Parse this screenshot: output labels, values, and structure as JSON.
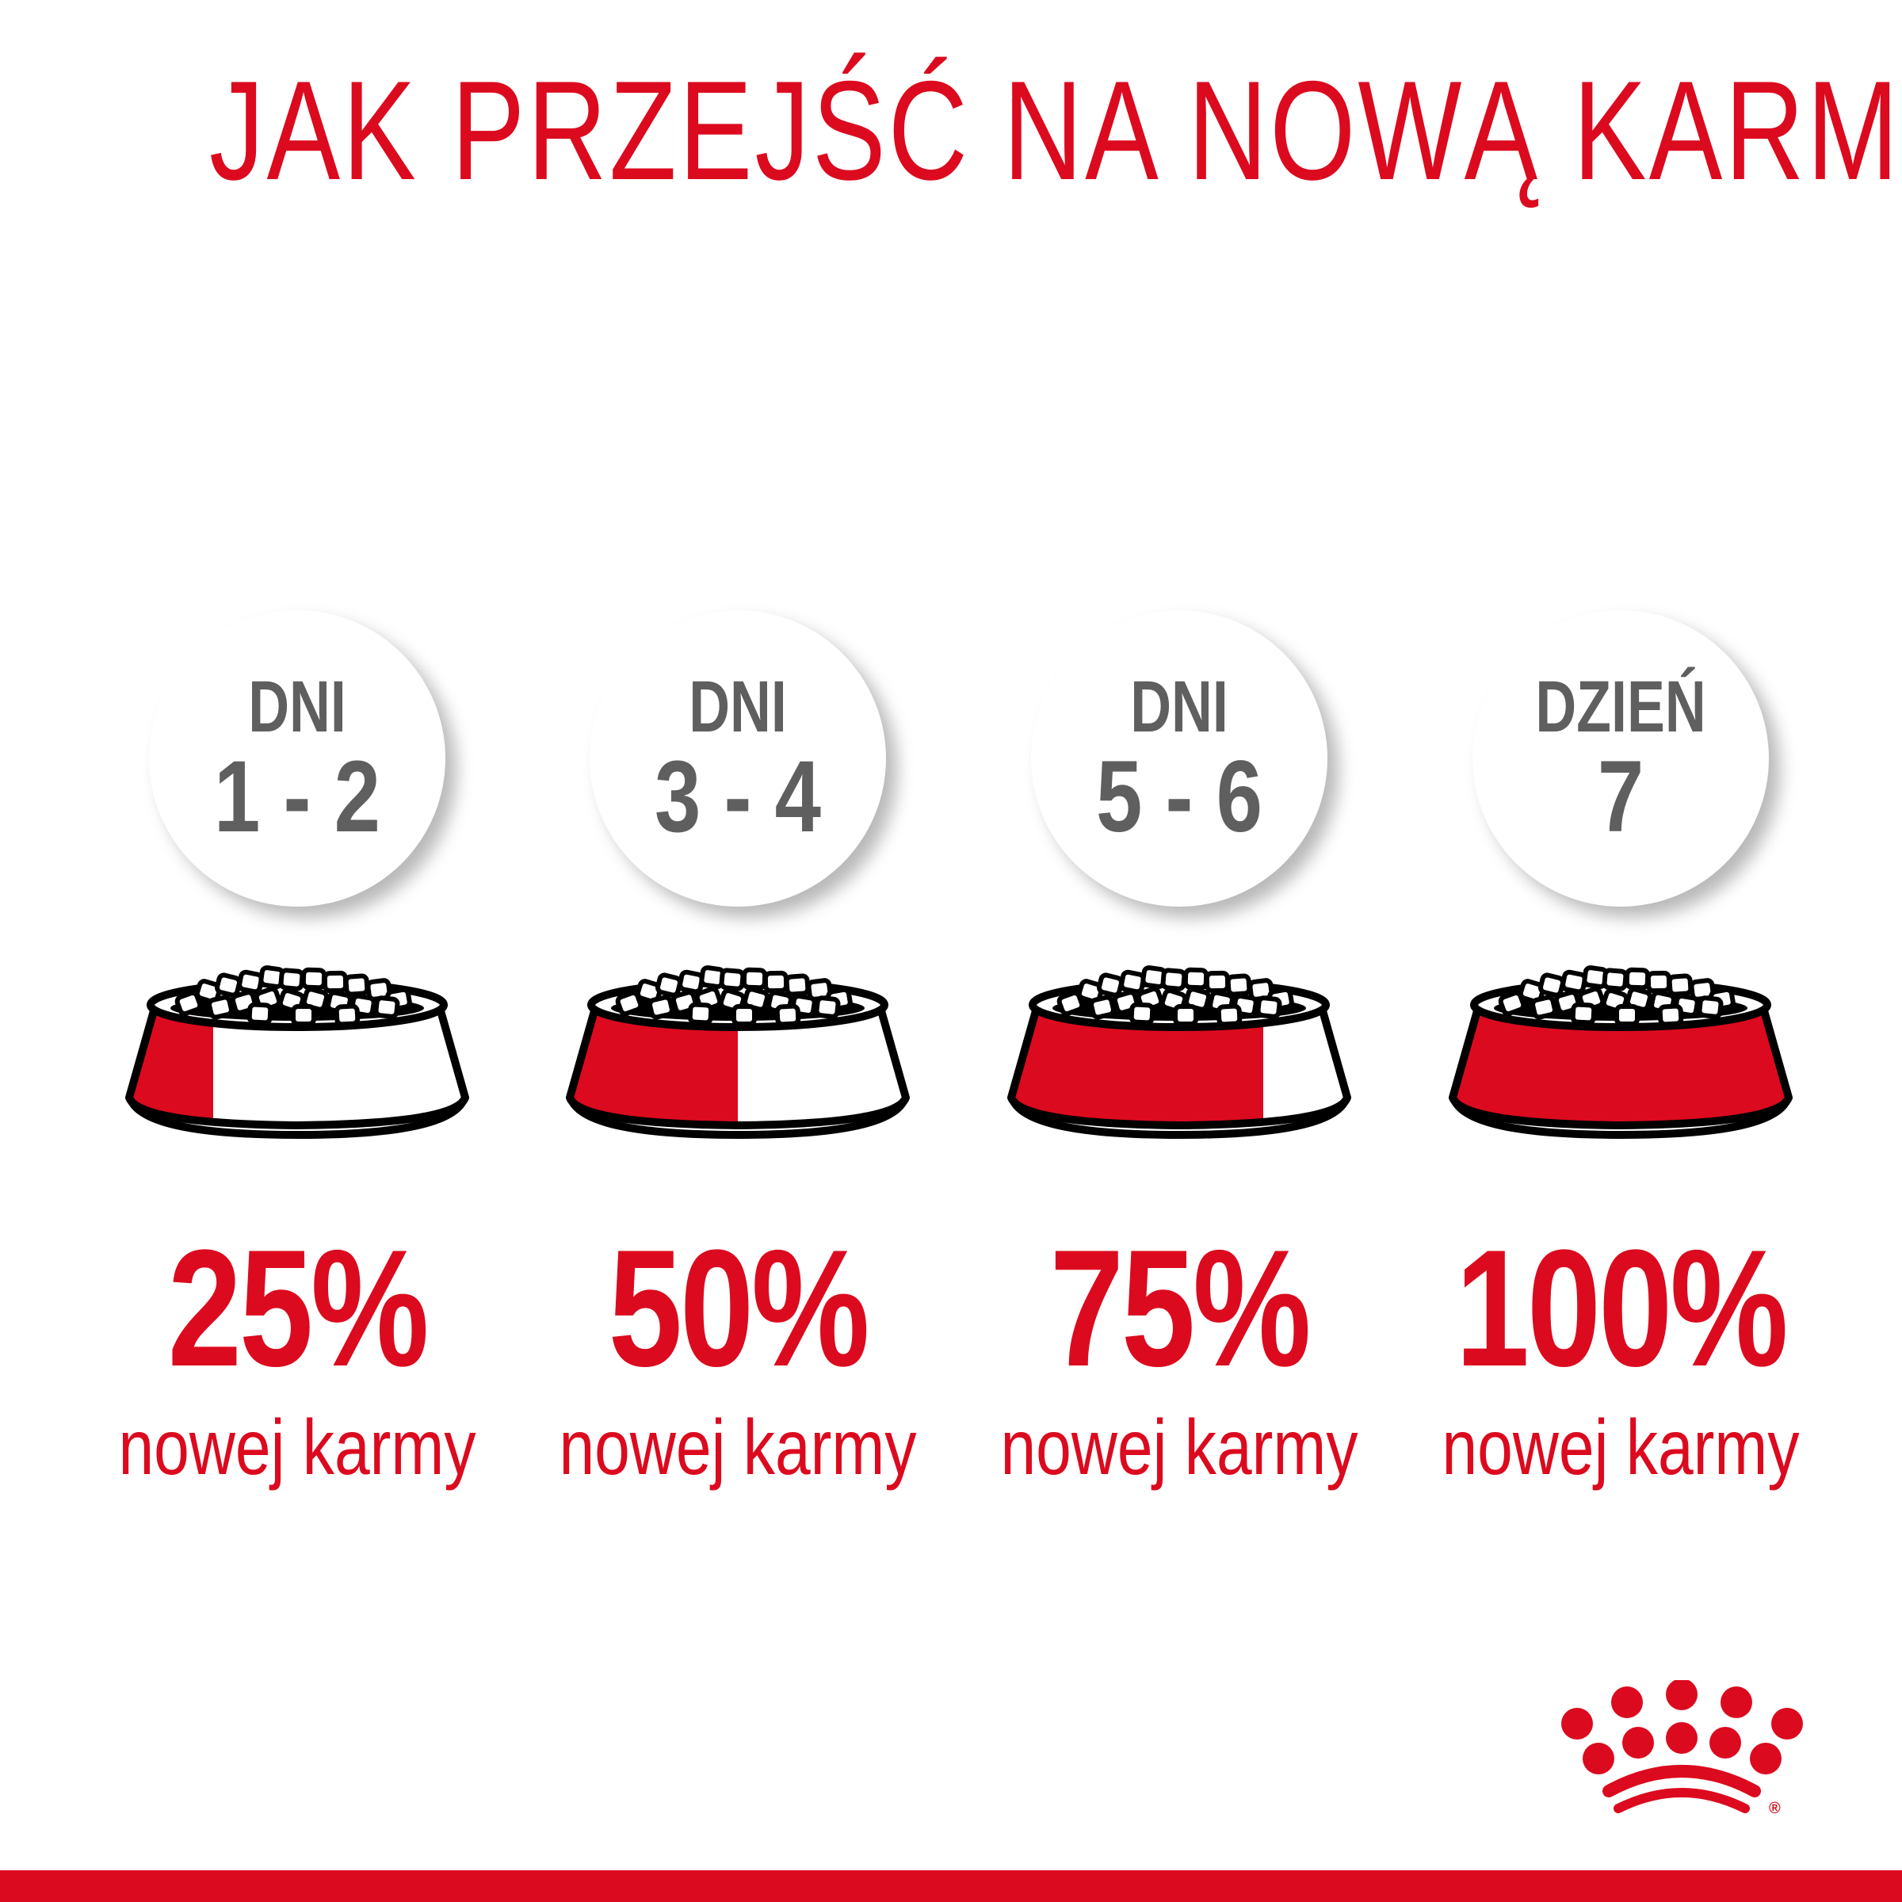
{
  "title": "JAK PRZEJŚĆ NA NOWĄ KARMĘ",
  "colors": {
    "brand_red": "#dc0a1e",
    "gray": "#5f5f5f"
  },
  "steps": [
    {
      "label": "DNI",
      "days": "1 - 2",
      "percent": "25%",
      "new_food_fraction": 0.25,
      "caption": "nowej karmy"
    },
    {
      "label": "DNI",
      "days": "3 - 4",
      "percent": "50%",
      "new_food_fraction": 0.5,
      "caption": "nowej karmy"
    },
    {
      "label": "DNI",
      "days": "5 - 6",
      "percent": "75%",
      "new_food_fraction": 0.75,
      "caption": "nowej karmy"
    },
    {
      "label": "DZIEŃ",
      "days": "7",
      "percent": "100%",
      "new_food_fraction": 1.0,
      "caption": "nowej karmy"
    }
  ],
  "logo": {
    "name": "crown-logo-icon",
    "mark": "®"
  }
}
